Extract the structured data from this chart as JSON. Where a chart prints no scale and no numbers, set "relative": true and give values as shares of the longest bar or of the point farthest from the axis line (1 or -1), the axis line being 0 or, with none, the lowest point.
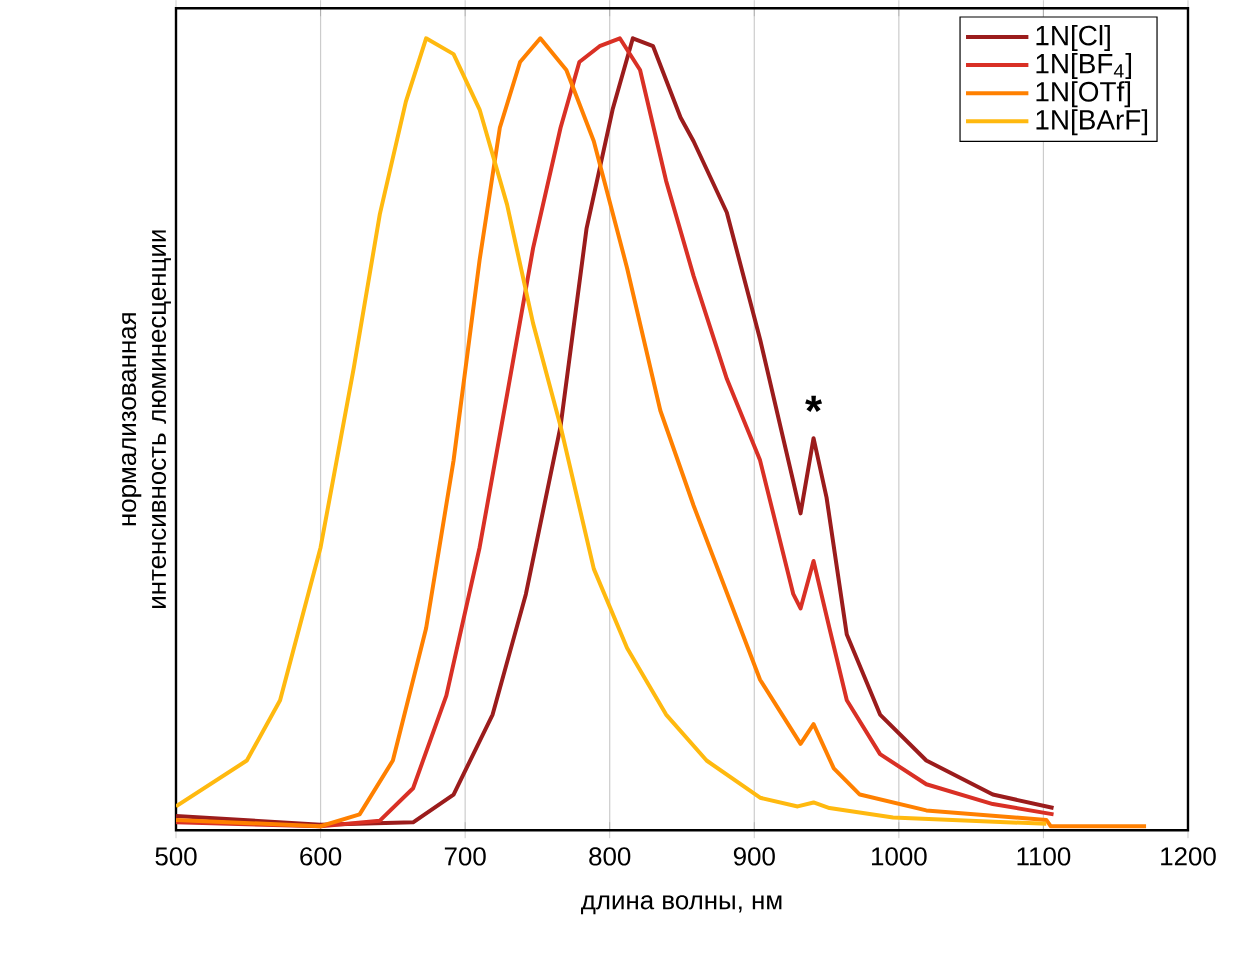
{
  "chart_data": {
    "type": "line",
    "relative": true,
    "xlabel": "длина волны, нм",
    "ylabel": "нормализованная интенсивность люминесценции",
    "xlim": [
      500,
      1200
    ],
    "xticks": [
      500,
      600,
      700,
      800,
      900,
      1000,
      1100,
      1200
    ],
    "grid": "x",
    "legend": "top right",
    "line_style": "solid",
    "annotations": [
      {
        "text": "*",
        "x": 941,
        "y": 0.495
      }
    ],
    "series": [
      {
        "name": "1N[Cl]",
        "color": "#9b1c1c",
        "x": [
          500,
          600,
          664,
          692,
          719,
          742,
          766,
          784,
          802,
          816,
          830,
          849,
          858,
          881,
          904,
          927,
          932,
          941,
          950,
          964,
          987,
          1019,
          1065,
          1107
        ],
        "values": [
          0.018,
          0.007,
          0.01,
          0.045,
          0.146,
          0.298,
          0.51,
          0.76,
          0.91,
          1.0,
          0.99,
          0.9,
          0.87,
          0.78,
          0.62,
          0.44,
          0.4,
          0.495,
          0.42,
          0.247,
          0.146,
          0.088,
          0.045,
          0.028
        ]
      },
      {
        "name": "1N[BF$_{4}$]",
        "color": "#d93025",
        "x": [
          500,
          600,
          641,
          664,
          687,
          710,
          729,
          747,
          766,
          779,
          793,
          807,
          821,
          839,
          858,
          881,
          904,
          927,
          932,
          941,
          952,
          964,
          987,
          1019,
          1065,
          1107
        ],
        "values": [
          0.01,
          0.005,
          0.012,
          0.053,
          0.17,
          0.357,
          0.55,
          0.735,
          0.887,
          0.97,
          0.99,
          1.0,
          0.96,
          0.82,
          0.7,
          0.57,
          0.467,
          0.298,
          0.28,
          0.34,
          0.255,
          0.164,
          0.096,
          0.058,
          0.033,
          0.02
        ]
      },
      {
        "name": "1N[OTf]",
        "color": "#ff8000",
        "x": [
          500,
          600,
          627,
          650,
          673,
          692,
          710,
          724,
          738,
          752,
          770,
          789,
          812,
          835,
          858,
          881,
          904,
          932,
          941,
          955,
          973,
          1019,
          1102,
          1105,
          1171
        ],
        "values": [
          0.013,
          0.005,
          0.02,
          0.088,
          0.255,
          0.467,
          0.72,
          0.887,
          0.97,
          1.0,
          0.96,
          0.87,
          0.71,
          0.53,
          0.41,
          0.3,
          0.19,
          0.109,
          0.134,
          0.078,
          0.045,
          0.025,
          0.013,
          0.005,
          0.005
        ]
      },
      {
        "name": "1N[BArF]",
        "color": "#ffb90f",
        "x": [
          500,
          549,
          572,
          600,
          623,
          641,
          659,
          673,
          692,
          710,
          729,
          747,
          766,
          789,
          812,
          839,
          867,
          904,
          930,
          941,
          952,
          996,
          1102
        ],
        "values": [
          0.03,
          0.088,
          0.164,
          0.357,
          0.584,
          0.778,
          0.92,
          1.0,
          0.98,
          0.91,
          0.79,
          0.64,
          0.51,
          0.33,
          0.23,
          0.146,
          0.088,
          0.041,
          0.03,
          0.035,
          0.028,
          0.016,
          0.008
        ]
      }
    ]
  }
}
